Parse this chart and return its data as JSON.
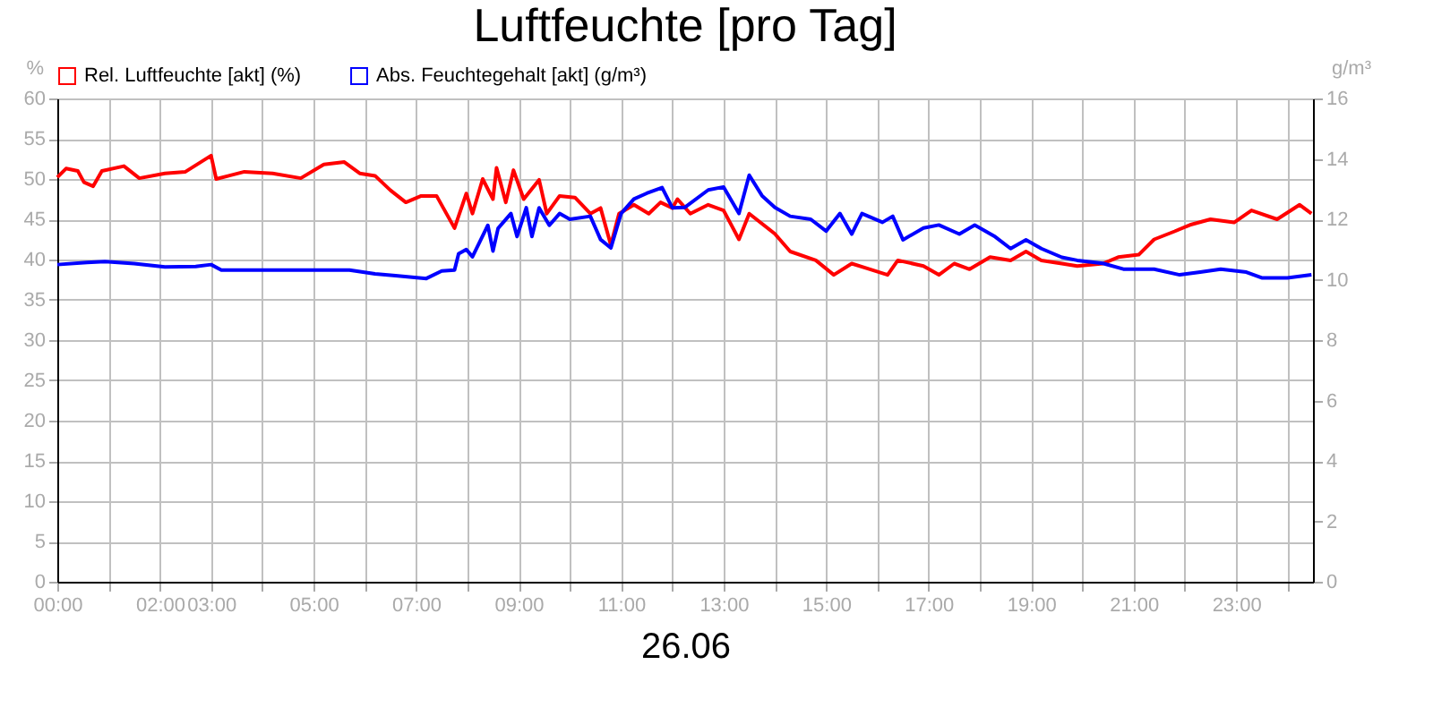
{
  "chart_data": {
    "type": "line",
    "title": "Luftfeuchte [pro Tag]",
    "xlabel": "26.06",
    "ylabel": "%",
    "y2label": "g/m³",
    "xlim": [
      0,
      24.5
    ],
    "xticks": [
      {
        "value": 0,
        "label": "00:00"
      },
      {
        "value": 1,
        "label": null
      },
      {
        "value": 2,
        "label": "02:00"
      },
      {
        "value": 3,
        "label": "03:00"
      },
      {
        "value": 4,
        "label": null
      },
      {
        "value": 5,
        "label": "05:00"
      },
      {
        "value": 6,
        "label": null
      },
      {
        "value": 7,
        "label": "07:00"
      },
      {
        "value": 8,
        "label": null
      },
      {
        "value": 9,
        "label": "09:00"
      },
      {
        "value": 10,
        "label": null
      },
      {
        "value": 11,
        "label": "11:00"
      },
      {
        "value": 12,
        "label": null
      },
      {
        "value": 13,
        "label": "13:00"
      },
      {
        "value": 14,
        "label": null
      },
      {
        "value": 15,
        "label": "15:00"
      },
      {
        "value": 16,
        "label": null
      },
      {
        "value": 17,
        "label": "17:00"
      },
      {
        "value": 18,
        "label": null
      },
      {
        "value": 19,
        "label": "19:00"
      },
      {
        "value": 20,
        "label": null
      },
      {
        "value": 21,
        "label": "21:00"
      },
      {
        "value": 22,
        "label": null
      },
      {
        "value": 23,
        "label": "23:00"
      },
      {
        "value": 24,
        "label": null
      }
    ],
    "ylim": [
      0,
      60
    ],
    "yticks": [
      0,
      5,
      10,
      15,
      20,
      25,
      30,
      35,
      40,
      45,
      50,
      55,
      60
    ],
    "y2lim": [
      0,
      16
    ],
    "y2ticks": [
      0,
      2,
      4,
      6,
      8,
      10,
      12,
      14,
      16
    ],
    "grid": true,
    "legend": "top left",
    "marker": "none",
    "line_style": "solid",
    "series": [
      {
        "name": "Rel. Luftfeuchte [akt] (%)",
        "color": "#ff0000",
        "x": [
          0,
          0.17,
          0.4,
          0.52,
          0.7,
          0.87,
          1.3,
          1.6,
          2.1,
          2.5,
          3.0,
          3.1,
          3.65,
          4.2,
          4.75,
          5.2,
          5.6,
          5.9,
          6.2,
          6.5,
          6.8,
          7.1,
          7.4,
          7.75,
          7.98,
          8.1,
          8.3,
          8.5,
          8.57,
          8.75,
          8.9,
          9.1,
          9.4,
          9.55,
          9.8,
          10.1,
          10.4,
          10.6,
          10.8,
          10.96,
          11.25,
          11.54,
          11.77,
          12.0,
          12.1,
          12.35,
          12.7,
          13.0,
          13.3,
          13.5,
          14.0,
          14.3,
          14.8,
          15.15,
          15.5,
          15.8,
          16.2,
          16.4,
          16.9,
          17.2,
          17.5,
          17.8,
          18.2,
          18.6,
          18.9,
          19.2,
          19.6,
          19.9,
          20.4,
          20.7,
          21.1,
          21.4,
          21.8,
          22.1,
          22.5,
          22.96,
          23.3,
          23.8,
          24.24,
          24.47
        ],
        "values": [
          50.2,
          51.3,
          51,
          49.6,
          49.1,
          51,
          51.6,
          50.1,
          50.7,
          50.9,
          52.9,
          50,
          50.9,
          50.7,
          50.1,
          51.8,
          52.1,
          50.7,
          50.4,
          48.6,
          47.1,
          47.9,
          47.9,
          43.9,
          48.2,
          45.7,
          50,
          47.5,
          51.4,
          47.1,
          51.1,
          47.5,
          49.9,
          45.7,
          47.9,
          47.7,
          45.7,
          46.4,
          41.8,
          45.7,
          46.8,
          45.7,
          47.1,
          46.4,
          47.5,
          45.7,
          46.8,
          46.1,
          42.5,
          45.7,
          43.2,
          41,
          39.9,
          38.1,
          39.5,
          38.9,
          38.1,
          39.9,
          39.2,
          38.1,
          39.5,
          38.8,
          40.3,
          39.9,
          41,
          39.9,
          39.5,
          39.2,
          39.5,
          40.3,
          40.6,
          42.5,
          43.5,
          44.3,
          45,
          44.6,
          46.1,
          45,
          46.8,
          45.7
        ]
      },
      {
        "name": "Abs. Feuchtegehalt [akt] (g/m³)",
        "color": "#0000ff",
        "axis": "y2",
        "x": [
          0,
          0.58,
          0.93,
          1.5,
          2.1,
          2.7,
          3.0,
          3.2,
          3.8,
          4.4,
          5.2,
          5.7,
          6.2,
          6.6,
          7.2,
          7.5,
          7.75,
          7.83,
          7.98,
          8.1,
          8.4,
          8.5,
          8.6,
          8.85,
          8.97,
          9.15,
          9.26,
          9.4,
          9.6,
          9.8,
          10.0,
          10.4,
          10.6,
          10.8,
          11.0,
          11.25,
          11.5,
          11.8,
          12.0,
          12.24,
          12.7,
          13.0,
          13.3,
          13.5,
          13.75,
          14.0,
          14.3,
          14.7,
          15.0,
          15.27,
          15.5,
          15.7,
          16.1,
          16.3,
          16.5,
          16.9,
          17.2,
          17.6,
          17.9,
          18.3,
          18.6,
          18.9,
          19.2,
          19.6,
          19.9,
          20.4,
          20.8,
          21.4,
          21.9,
          22.3,
          22.7,
          23.2,
          23.5,
          24.0,
          24.47
        ],
        "values": [
          10.5,
          10.57,
          10.6,
          10.53,
          10.42,
          10.44,
          10.5,
          10.32,
          10.32,
          10.32,
          10.32,
          10.32,
          10.19,
          10.13,
          10.04,
          10.29,
          10.32,
          10.86,
          11.0,
          10.76,
          11.8,
          10.95,
          11.7,
          12.19,
          11.43,
          12.38,
          11.43,
          12.38,
          11.8,
          12.19,
          12.0,
          12.1,
          11.33,
          11.05,
          12.19,
          12.67,
          12.86,
          13.05,
          12.38,
          12.39,
          12.97,
          13.07,
          12.19,
          13.46,
          12.78,
          12.39,
          12.1,
          12.0,
          11.61,
          12.19,
          11.51,
          12.19,
          11.9,
          12.1,
          11.32,
          11.71,
          11.81,
          11.51,
          11.81,
          11.42,
          11.03,
          11.32,
          11.03,
          10.74,
          10.64,
          10.54,
          10.35,
          10.35,
          10.16,
          10.25,
          10.35,
          10.25,
          10.06,
          10.06,
          10.16
        ]
      }
    ]
  }
}
